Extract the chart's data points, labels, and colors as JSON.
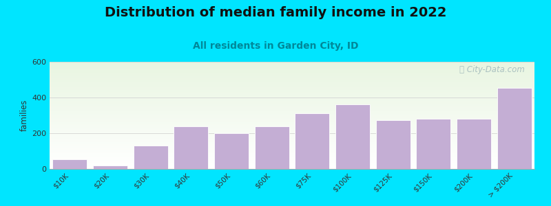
{
  "title": "Distribution of median family income in 2022",
  "subtitle": "All residents in Garden City, ID",
  "categories": [
    "$10K",
    "$20K",
    "$30K",
    "$40K",
    "$50K",
    "$60K",
    "$75K",
    "$100K",
    "$125K",
    "$150K",
    "$200K",
    "> $200K"
  ],
  "values": [
    55,
    20,
    130,
    240,
    200,
    240,
    310,
    360,
    275,
    280,
    280,
    455
  ],
  "bar_color": "#c4aed4",
  "bar_edge_color": "#ffffff",
  "ylabel": "families",
  "ylim": [
    0,
    600
  ],
  "yticks": [
    0,
    200,
    400,
    600
  ],
  "background_color": "#00e5ff",
  "title_color": "#111111",
  "subtitle_color": "#008899",
  "title_fontsize": 14,
  "subtitle_fontsize": 10,
  "watermark": "ⓘ City-Data.com",
  "watermark_color": "#a0b8bb"
}
